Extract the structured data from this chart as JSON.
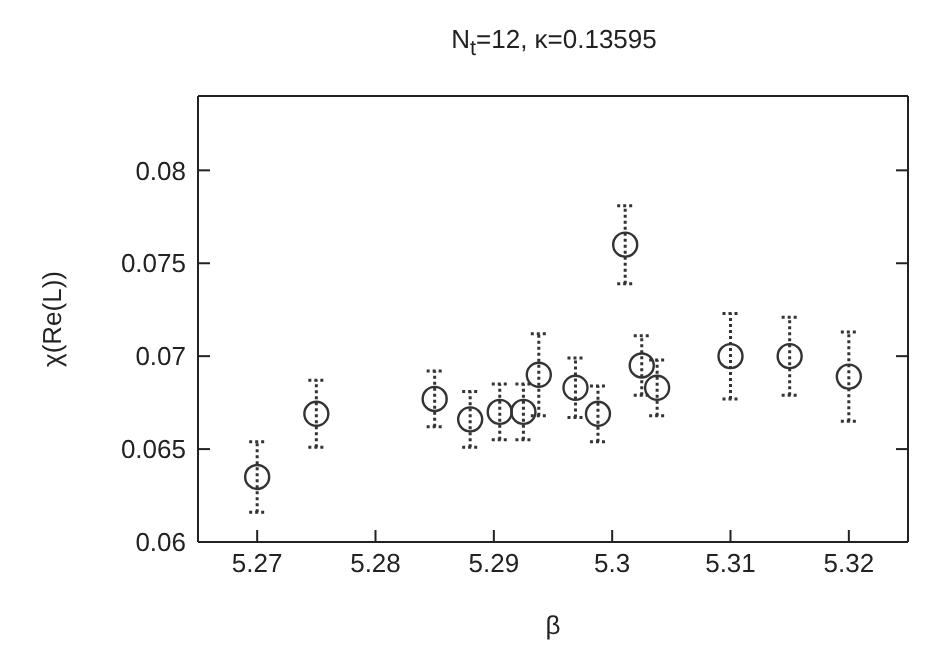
{
  "chart_data": {
    "type": "scatter",
    "title": "N$_{t}$=12, κ=0.13595",
    "xlabel": "β",
    "ylabel": "χ(Re(L))",
    "x": [
      5.27,
      5.275,
      5.285,
      5.288,
      5.2905,
      5.2925,
      5.2938,
      5.2969,
      5.2988,
      5.3011,
      5.3025,
      5.3038,
      5.31,
      5.315,
      5.32
    ],
    "values": [
      0.0635,
      0.0669,
      0.0677,
      0.0666,
      0.067,
      0.067,
      0.069,
      0.0683,
      0.0669,
      0.076,
      0.0695,
      0.0683,
      0.07,
      0.07,
      0.0689
    ],
    "errors": [
      0.0019,
      0.0018,
      0.0015,
      0.0015,
      0.0015,
      0.0015,
      0.0022,
      0.0016,
      0.0015,
      0.0021,
      0.0016,
      0.0015,
      0.0023,
      0.0021,
      0.0024
    ],
    "color": "#333333",
    "marker": "circle",
    "xlim": [
      5.265,
      5.325
    ],
    "xticks": [
      5.27,
      5.28,
      5.29,
      5.3,
      5.31,
      5.32
    ],
    "ylim": [
      0.06,
      0.084
    ],
    "yticks": [
      0.06,
      0.065,
      0.07,
      0.075,
      0.08
    ]
  }
}
